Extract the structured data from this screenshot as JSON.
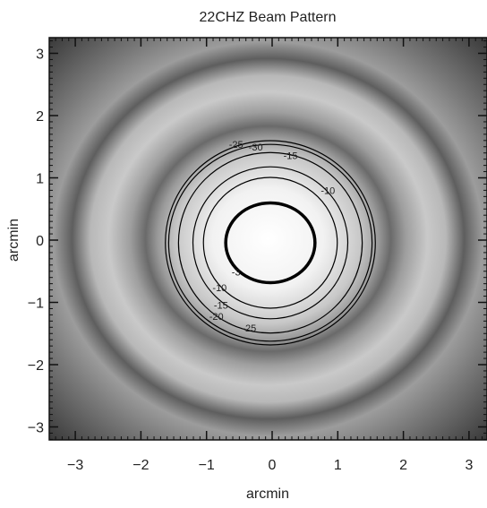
{
  "chart_data": {
    "type": "heatmap",
    "title": "22CHZ Beam Pattern",
    "xlabel": "arcmin",
    "ylabel": "arcmin",
    "xlim": [
      -3.4,
      3.4
    ],
    "ylim": [
      -3.4,
      3.4
    ],
    "x_ticks": [
      -3,
      -2,
      -1,
      0,
      1,
      2,
      3
    ],
    "y_ticks": [
      -3,
      -2,
      -1,
      0,
      1,
      2,
      3
    ],
    "colormap": [
      "#2a2a2a",
      "#ffffff"
    ],
    "contour_levels": [
      {
        "level": -3,
        "label": "-3",
        "rx": 0.68,
        "ry": 0.64,
        "bold": true
      },
      {
        "level": -10,
        "label": "-10",
        "rx": 1.02,
        "ry": 1.05,
        "bold": false
      },
      {
        "level": -15,
        "label": "-15",
        "rx": 1.18,
        "ry": 1.22,
        "bold": false
      },
      {
        "level": -20,
        "label": "-20",
        "rx": 1.4,
        "ry": 1.45,
        "bold": false
      },
      {
        "level": -25,
        "label": "-25",
        "rx": 1.55,
        "ry": 1.58,
        "bold": false
      },
      {
        "level": -30,
        "label": "-30",
        "rx": 1.6,
        "ry": 1.64,
        "bold": false
      }
    ],
    "contour_labels": [
      {
        "text": "-25",
        "x": -0.55,
        "y": 1.48
      },
      {
        "text": "-30",
        "x": -0.25,
        "y": 1.44
      },
      {
        "text": "-15",
        "x": 0.28,
        "y": 1.3
      },
      {
        "text": "-10",
        "x": 0.85,
        "y": 0.74
      },
      {
        "text": "-3",
        "x": -0.55,
        "y": -0.57
      },
      {
        "text": "-10",
        "x": -0.8,
        "y": -0.82
      },
      {
        "text": "-15",
        "x": -0.78,
        "y": -1.1
      },
      {
        "text": "-20",
        "x": -0.85,
        "y": -1.28
      },
      {
        "text": "-25",
        "x": -0.35,
        "y": -1.47
      }
    ]
  }
}
